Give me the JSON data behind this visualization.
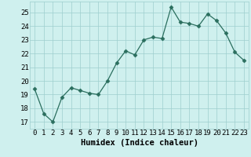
{
  "x": [
    0,
    1,
    2,
    3,
    4,
    5,
    6,
    7,
    8,
    9,
    10,
    11,
    12,
    13,
    14,
    15,
    16,
    17,
    18,
    19,
    20,
    21,
    22,
    23
  ],
  "y": [
    19.4,
    17.6,
    17.0,
    18.8,
    19.5,
    19.3,
    19.1,
    19.0,
    20.0,
    21.3,
    22.2,
    21.9,
    23.0,
    23.2,
    23.1,
    25.4,
    24.3,
    24.2,
    24.0,
    24.9,
    24.4,
    23.5,
    22.1,
    21.5
  ],
  "xlabel": "Humidex (Indice chaleur)",
  "xlim": [
    -0.5,
    23.5
  ],
  "ylim": [
    16.5,
    25.8
  ],
  "yticks": [
    17,
    18,
    19,
    20,
    21,
    22,
    23,
    24,
    25
  ],
  "xticks": [
    0,
    1,
    2,
    3,
    4,
    5,
    6,
    7,
    8,
    9,
    10,
    11,
    12,
    13,
    14,
    15,
    16,
    17,
    18,
    19,
    20,
    21,
    22,
    23
  ],
  "line_color": "#2a6e5e",
  "marker": "D",
  "marker_size": 2.5,
  "bg_color": "#cff0ee",
  "grid_color": "#9ecece",
  "xlabel_fontsize": 7.5,
  "tick_fontsize": 6.5
}
